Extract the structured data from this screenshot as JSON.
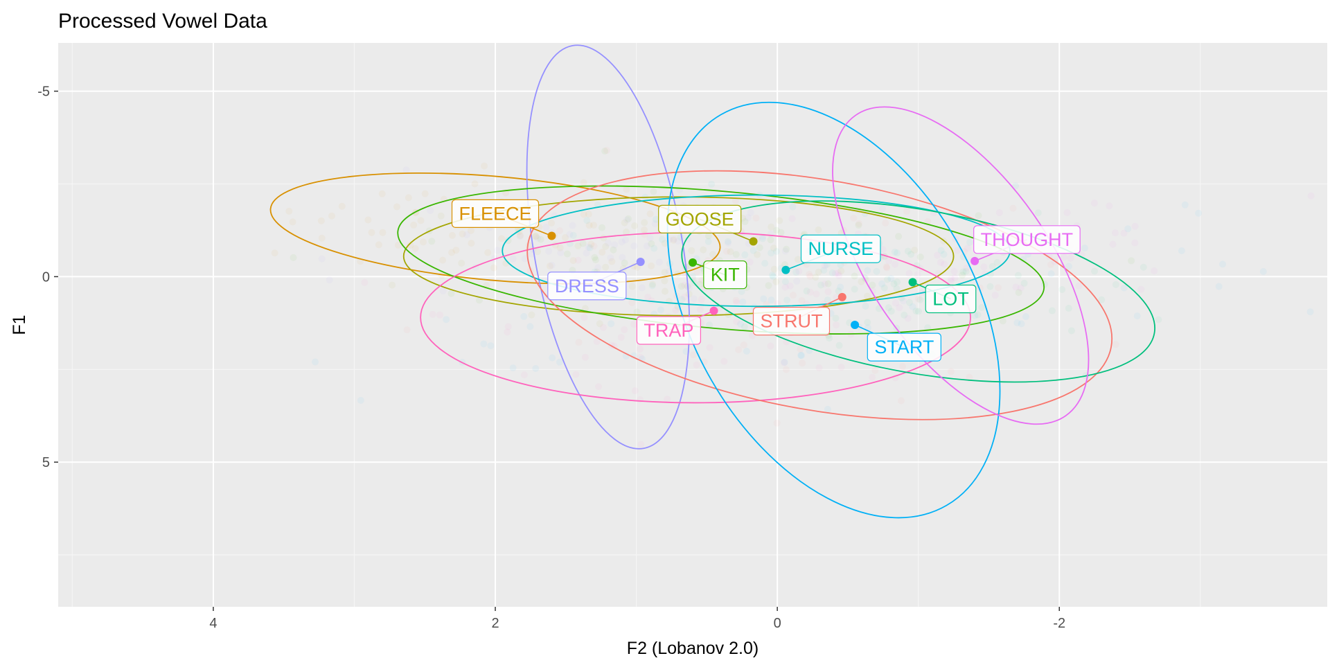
{
  "chart_data": {
    "type": "scatter",
    "title": "Processed Vowel Data",
    "xlabel": "F2 (Lobanov 2.0)",
    "ylabel": "F1",
    "x_reversed": true,
    "y_reversed": true,
    "xlim": [
      5.1,
      -3.9
    ],
    "ylim": [
      -6.3,
      8.9
    ],
    "x_ticks": [
      4,
      2,
      0,
      -2
    ],
    "x_tick_labels": [
      "4",
      "2",
      "0",
      "-2"
    ],
    "y_ticks": [
      -5,
      0,
      5
    ],
    "y_tick_labels": [
      "-5",
      "0",
      "5"
    ],
    "grid": true,
    "legend": "none",
    "vowels": [
      {
        "name": "FLEECE",
        "color": "#D89000",
        "mean": [
          1.6,
          -1.1
        ],
        "ellipse": {
          "cx": 2.0,
          "cy": -1.3,
          "rx": 1.6,
          "ry": 1.4,
          "angle": 5
        },
        "label_at": [
          2.0,
          -1.7
        ]
      },
      {
        "name": "GOOSE",
        "color": "#A3A500",
        "mean": [
          0.17,
          -0.95
        ],
        "ellipse": {
          "cx": 0.7,
          "cy": -0.55,
          "rx": 1.95,
          "ry": 1.6,
          "angle": 0
        },
        "label_at": [
          0.55,
          -1.55
        ]
      },
      {
        "name": "DRESS",
        "color": "#9590FF",
        "mean": [
          0.97,
          -0.4
        ],
        "ellipse": {
          "cx": 1.2,
          "cy": -0.8,
          "rx": 1.45,
          "ry": 2.0,
          "angle": 80
        },
        "label_at": [
          1.35,
          0.25
        ]
      },
      {
        "name": "KIT",
        "color": "#39B600",
        "mean": [
          0.6,
          -0.38
        ],
        "ellipse": {
          "cx": 0.4,
          "cy": -0.45,
          "rx": 2.3,
          "ry": 1.85,
          "angle": 5
        },
        "label_at": [
          0.37,
          -0.05
        ]
      },
      {
        "name": "NURSE",
        "color": "#00BFC4",
        "mean": [
          -0.06,
          -0.18
        ],
        "ellipse": {
          "cx": 0.15,
          "cy": -0.7,
          "rx": 1.8,
          "ry": 1.5,
          "angle": 0
        },
        "label_at": [
          -0.45,
          -0.75
        ]
      },
      {
        "name": "TRAP",
        "color": "#FF62BC",
        "mean": [
          0.45,
          0.92
        ],
        "ellipse": {
          "cx": 0.58,
          "cy": 1.1,
          "rx": 1.95,
          "ry": 2.3,
          "angle": 0
        },
        "label_at": [
          0.77,
          1.45
        ]
      },
      {
        "name": "STRUT",
        "color": "#F8766D",
        "mean": [
          -0.46,
          0.55
        ],
        "ellipse": {
          "cx": -0.3,
          "cy": 0.5,
          "rx": 2.1,
          "ry": 3.1,
          "angle": 10
        },
        "label_at": [
          -0.1,
          1.2
        ]
      },
      {
        "name": "START",
        "color": "#00B0F6",
        "mean": [
          -0.55,
          1.3
        ],
        "ellipse": {
          "cx": -0.4,
          "cy": 0.9,
          "rx": 1.6,
          "ry": 3.8,
          "angle": 60
        },
        "label_at": [
          -0.9,
          1.9
        ]
      },
      {
        "name": "LOT",
        "color": "#00BF7D",
        "mean": [
          -0.96,
          0.15
        ],
        "ellipse": {
          "cx": -1.0,
          "cy": 0.4,
          "rx": 1.7,
          "ry": 2.2,
          "angle": 10
        },
        "label_at": [
          -1.23,
          0.6
        ]
      },
      {
        "name": "THOUGHT",
        "color": "#E76BF3",
        "mean": [
          -1.4,
          -0.42
        ],
        "ellipse": {
          "cx": -1.3,
          "cy": -0.3,
          "rx": 1.3,
          "ry": 2.4,
          "angle": 55
        },
        "label_at": [
          -1.77,
          -1.0
        ]
      }
    ]
  }
}
